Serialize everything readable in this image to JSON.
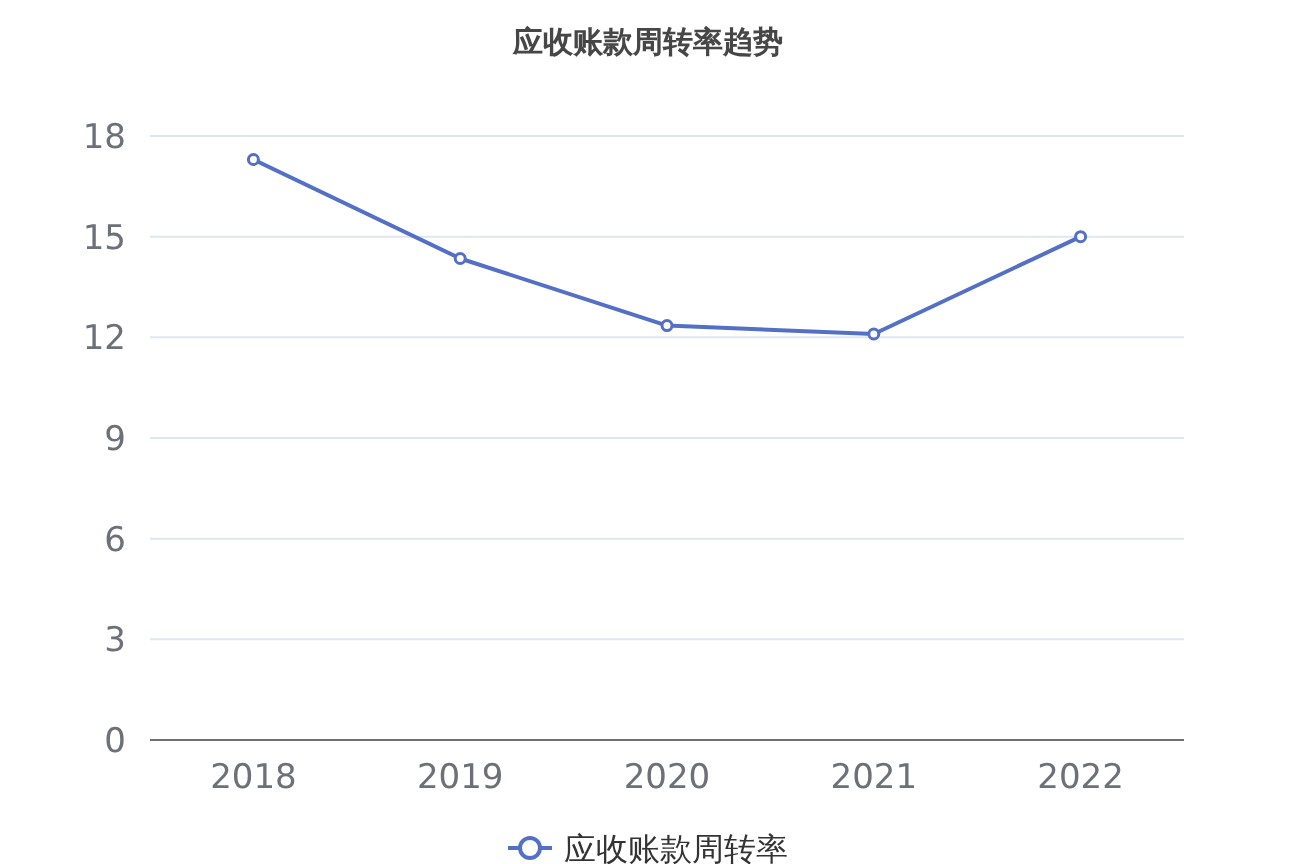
{
  "chart_data": {
    "type": "line",
    "title": "应收账款周转率趋势",
    "categories": [
      "2018",
      "2019",
      "2020",
      "2021",
      "2022"
    ],
    "series": [
      {
        "name": "应收账款周转率",
        "color": "#5470c6",
        "values": [
          17.3,
          14.35,
          12.35,
          12.1,
          15.0
        ]
      }
    ],
    "ylim": [
      0,
      18
    ],
    "yticks": [
      0,
      3,
      6,
      9,
      12,
      15,
      18
    ],
    "grid": "y",
    "legend": "bottom",
    "marker": "circle",
    "line_style": "solid"
  }
}
